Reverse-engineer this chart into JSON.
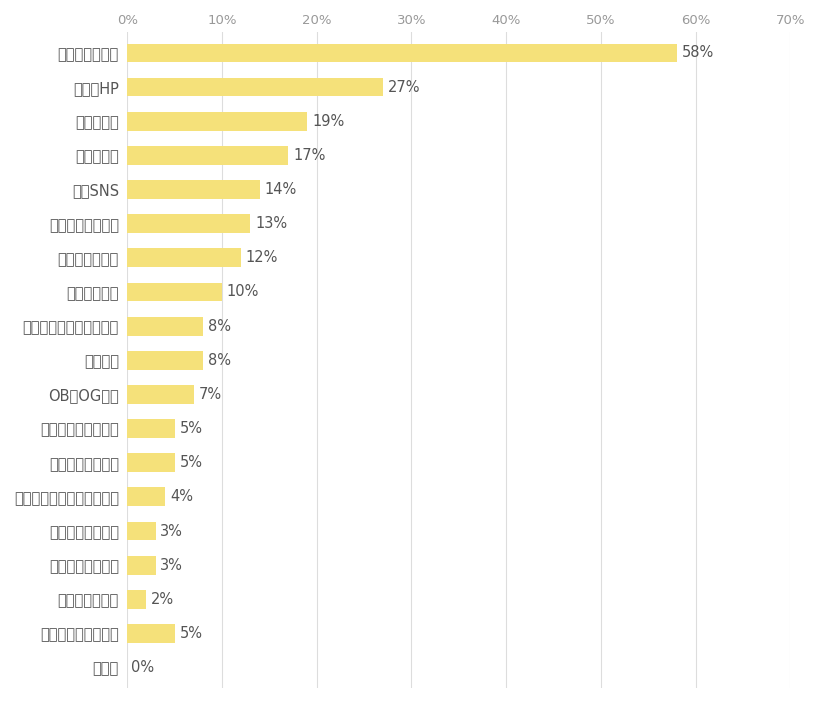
{
  "categories": [
    "その他",
    "企業研究していない",
    "財務データ分析",
    "就活エージェント",
    "四季報・企業年鑑",
    "業界地図・企業ランキング",
    "動画まとめサイト",
    "新聞・ビジネス雑誌",
    "OB・OG訪問",
    "企業動画",
    "大学のキャリアセンター",
    "合同セミナー",
    "友人・知人紹介",
    "インターンシップ",
    "企業SNS",
    "求人アプリ",
    "企業説明会",
    "企業のHP",
    "就活情報サイト"
  ],
  "values": [
    0,
    5,
    2,
    3,
    3,
    4,
    5,
    5,
    7,
    8,
    8,
    10,
    12,
    13,
    14,
    17,
    19,
    27,
    58
  ],
  "bar_color": "#F5E17A",
  "label_color": "#555555",
  "tick_color": "#999999",
  "grid_color": "#DDDDDD",
  "background_color": "#FFFFFF",
  "xlim": [
    0,
    70
  ],
  "xticks": [
    0,
    10,
    20,
    30,
    40,
    50,
    60,
    70
  ],
  "xtick_labels": [
    "0%",
    "10%",
    "20%",
    "30%",
    "40%",
    "50%",
    "60%",
    "70%"
  ],
  "bar_height": 0.55,
  "fontsize_labels": 10.5,
  "fontsize_ticks": 9.5,
  "fontsize_values": 10.5
}
